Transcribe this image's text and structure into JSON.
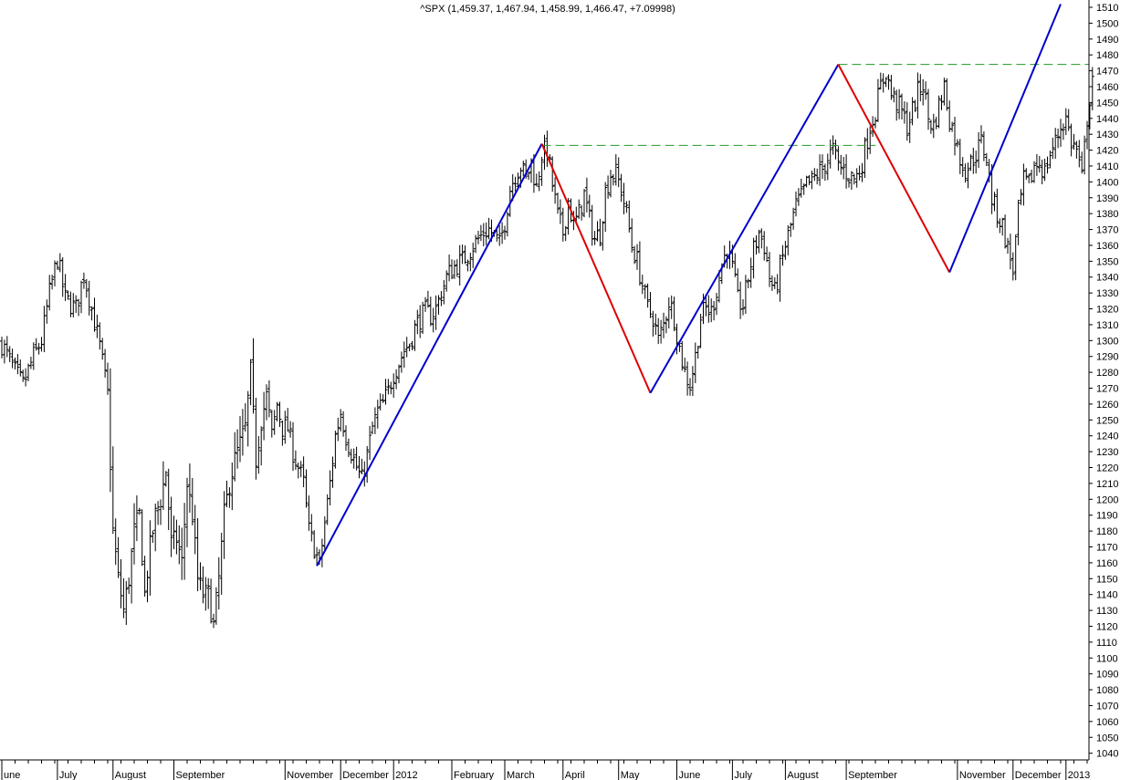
{
  "chart_data": {
    "type": "ohlc",
    "title": "^SPX (1,459.37, 1,467.94, 1,458.99, 1,466.47, +7.09998)",
    "ylim": [
      1035,
      1512
    ],
    "yticks": [
      1040,
      1050,
      1060,
      1070,
      1080,
      1090,
      1100,
      1110,
      1120,
      1130,
      1140,
      1150,
      1160,
      1170,
      1180,
      1190,
      1200,
      1210,
      1220,
      1230,
      1240,
      1250,
      1260,
      1270,
      1280,
      1290,
      1300,
      1310,
      1320,
      1330,
      1340,
      1350,
      1360,
      1370,
      1380,
      1390,
      1400,
      1410,
      1420,
      1430,
      1440,
      1450,
      1460,
      1470,
      1480,
      1490,
      1500,
      1510
    ],
    "x_unit": "trading-day index (0 = first bar, ~2011-06-01)",
    "xlim": [
      0,
      402
    ],
    "month_labels": [
      {
        "label": "une",
        "x": 0
      },
      {
        "label": "July",
        "x": 21
      },
      {
        "label": "August",
        "x": 42
      },
      {
        "label": "September",
        "x": 65
      },
      {
        "label": "November",
        "x": 107
      },
      {
        "label": "December",
        "x": 128
      },
      {
        "label": "2012",
        "x": 148
      },
      {
        "label": "February",
        "x": 170
      },
      {
        "label": "March",
        "x": 190
      },
      {
        "label": "April",
        "x": 212
      },
      {
        "label": "May",
        "x": 233
      },
      {
        "label": "June",
        "x": 255
      },
      {
        "label": "July",
        "x": 276
      },
      {
        "label": "August",
        "x": 296
      },
      {
        "label": "September",
        "x": 319
      },
      {
        "label": "November",
        "x": 361
      },
      {
        "label": "December",
        "x": 382
      },
      {
        "label": "2013",
        "x": 402
      }
    ],
    "close_path": [
      [
        0,
        1298
      ],
      [
        5,
        1280
      ],
      [
        8,
        1272
      ],
      [
        12,
        1290
      ],
      [
        15,
        1300
      ],
      [
        18,
        1330
      ],
      [
        21,
        1352
      ],
      [
        24,
        1326
      ],
      [
        28,
        1320
      ],
      [
        31,
        1342
      ],
      [
        34,
        1320
      ],
      [
        37,
        1296
      ],
      [
        40,
        1266
      ],
      [
        42,
        1180
      ],
      [
        44,
        1150
      ],
      [
        46,
        1130
      ],
      [
        48,
        1150
      ],
      [
        50,
        1180
      ],
      [
        52,
        1190
      ],
      [
        54,
        1140
      ],
      [
        56,
        1170
      ],
      [
        58,
        1190
      ],
      [
        60,
        1200
      ],
      [
        62,
        1218
      ],
      [
        64,
        1172
      ],
      [
        66,
        1175
      ],
      [
        68,
        1160
      ],
      [
        70,
        1210
      ],
      [
        72,
        1190
      ],
      [
        74,
        1150
      ],
      [
        76,
        1140
      ],
      [
        78,
        1140
      ],
      [
        80,
        1120
      ],
      [
        82,
        1150
      ],
      [
        84,
        1190
      ],
      [
        86,
        1210
      ],
      [
        88,
        1225
      ],
      [
        90,
        1235
      ],
      [
        92,
        1245
      ],
      [
        94,
        1280
      ],
      [
        96,
        1225
      ],
      [
        98,
        1250
      ],
      [
        100,
        1265
      ],
      [
        102,
        1240
      ],
      [
        104,
        1260
      ],
      [
        106,
        1245
      ],
      [
        108,
        1245
      ],
      [
        110,
        1230
      ],
      [
        112,
        1220
      ],
      [
        114,
        1210
      ],
      [
        116,
        1180
      ],
      [
        118,
        1170
      ],
      [
        120,
        1158
      ],
      [
        122,
        1185
      ],
      [
        124,
        1210
      ],
      [
        126,
        1240
      ],
      [
        128,
        1255
      ],
      [
        130,
        1240
      ],
      [
        132,
        1230
      ],
      [
        134,
        1220
      ],
      [
        136,
        1212
      ],
      [
        138,
        1228
      ],
      [
        140,
        1245
      ],
      [
        142,
        1255
      ],
      [
        144,
        1260
      ],
      [
        146,
        1268
      ],
      [
        148,
        1280
      ],
      [
        150,
        1286
      ],
      [
        152,
        1294
      ],
      [
        154,
        1298
      ],
      [
        156,
        1308
      ],
      [
        158,
        1314
      ],
      [
        160,
        1318
      ],
      [
        162,
        1316
      ],
      [
        164,
        1320
      ],
      [
        166,
        1330
      ],
      [
        168,
        1340
      ],
      [
        170,
        1345
      ],
      [
        172,
        1348
      ],
      [
        174,
        1350
      ],
      [
        176,
        1355
      ],
      [
        178,
        1360
      ],
      [
        180,
        1364
      ],
      [
        182,
        1368
      ],
      [
        184,
        1370
      ],
      [
        186,
        1366
      ],
      [
        188,
        1360
      ],
      [
        190,
        1375
      ],
      [
        192,
        1396
      ],
      [
        194,
        1405
      ],
      [
        196,
        1410
      ],
      [
        198,
        1402
      ],
      [
        200,
        1412
      ],
      [
        202,
        1396
      ],
      [
        204,
        1418
      ],
      [
        206,
        1420
      ],
      [
        208,
        1398
      ],
      [
        210,
        1378
      ],
      [
        212,
        1368
      ],
      [
        214,
        1388
      ],
      [
        216,
        1372
      ],
      [
        218,
        1380
      ],
      [
        220,
        1392
      ],
      [
        222,
        1376
      ],
      [
        224,
        1364
      ],
      [
        226,
        1368
      ],
      [
        228,
        1394
      ],
      [
        230,
        1405
      ],
      [
        232,
        1405
      ],
      [
        234,
        1395
      ],
      [
        236,
        1380
      ],
      [
        238,
        1360
      ],
      [
        240,
        1350
      ],
      [
        242,
        1335
      ],
      [
        244,
        1320
      ],
      [
        246,
        1315
      ],
      [
        248,
        1300
      ],
      [
        250,
        1310
      ],
      [
        252,
        1325
      ],
      [
        254,
        1315
      ],
      [
        256,
        1295
      ],
      [
        258,
        1280
      ],
      [
        260,
        1272
      ],
      [
        262,
        1290
      ],
      [
        264,
        1315
      ],
      [
        266,
        1320
      ],
      [
        268,
        1318
      ],
      [
        270,
        1332
      ],
      [
        272,
        1348
      ],
      [
        274,
        1358
      ],
      [
        276,
        1345
      ],
      [
        278,
        1325
      ],
      [
        280,
        1322
      ],
      [
        282,
        1340
      ],
      [
        284,
        1357
      ],
      [
        286,
        1368
      ],
      [
        288,
        1360
      ],
      [
        290,
        1340
      ],
      [
        292,
        1330
      ],
      [
        294,
        1345
      ],
      [
        296,
        1360
      ],
      [
        298,
        1372
      ],
      [
        300,
        1385
      ],
      [
        302,
        1390
      ],
      [
        304,
        1398
      ],
      [
        306,
        1400
      ],
      [
        308,
        1405
      ],
      [
        310,
        1408
      ],
      [
        312,
        1415
      ],
      [
        314,
        1420
      ],
      [
        316,
        1410
      ],
      [
        318,
        1408
      ],
      [
        320,
        1404
      ],
      [
        322,
        1402
      ],
      [
        324,
        1406
      ],
      [
        326,
        1420
      ],
      [
        328,
        1435
      ],
      [
        330,
        1445
      ],
      [
        332,
        1460
      ],
      [
        334,
        1470
      ],
      [
        336,
        1455
      ],
      [
        338,
        1450
      ],
      [
        340,
        1444
      ],
      [
        342,
        1435
      ],
      [
        344,
        1445
      ],
      [
        346,
        1456
      ],
      [
        348,
        1462
      ],
      [
        350,
        1440
      ],
      [
        352,
        1435
      ],
      [
        354,
        1448
      ],
      [
        356,
        1460
      ],
      [
        358,
        1440
      ],
      [
        360,
        1428
      ],
      [
        362,
        1415
      ],
      [
        364,
        1408
      ],
      [
        366,
        1412
      ],
      [
        368,
        1418
      ],
      [
        370,
        1425
      ],
      [
        372,
        1415
      ],
      [
        374,
        1390
      ],
      [
        376,
        1380
      ],
      [
        378,
        1372
      ],
      [
        380,
        1358
      ],
      [
        382,
        1345
      ],
      [
        384,
        1380
      ],
      [
        386,
        1400
      ],
      [
        388,
        1398
      ],
      [
        390,
        1410
      ],
      [
        392,
        1412
      ],
      [
        394,
        1406
      ],
      [
        396,
        1418
      ],
      [
        398,
        1425
      ],
      [
        400,
        1435
      ],
      [
        402,
        1440
      ],
      [
        404,
        1425
      ],
      [
        406,
        1420
      ],
      [
        408,
        1402
      ],
      [
        410,
        1440
      ],
      [
        412,
        1466
      ]
    ],
    "annotations": {
      "trendlines": [
        {
          "color": "blue",
          "from": [
            119,
            1158
          ],
          "to": [
            204,
            1424
          ]
        },
        {
          "color": "red",
          "from": [
            204,
            1424
          ],
          "to": [
            245,
            1267
          ]
        },
        {
          "color": "blue",
          "from": [
            245,
            1267
          ],
          "to": [
            316,
            1474
          ]
        },
        {
          "color": "red",
          "from": [
            316,
            1474
          ],
          "to": [
            358,
            1343
          ]
        },
        {
          "color": "blue",
          "from": [
            358,
            1343
          ],
          "to": [
            400,
            1512
          ]
        }
      ],
      "levels": [
        {
          "color": "green",
          "style": "dashed",
          "y": 1423,
          "from_x": 204,
          "to_x": 330
        },
        {
          "color": "green",
          "style": "dashed",
          "y": 1474,
          "from_x": 316,
          "to_x": 414
        }
      ]
    }
  }
}
